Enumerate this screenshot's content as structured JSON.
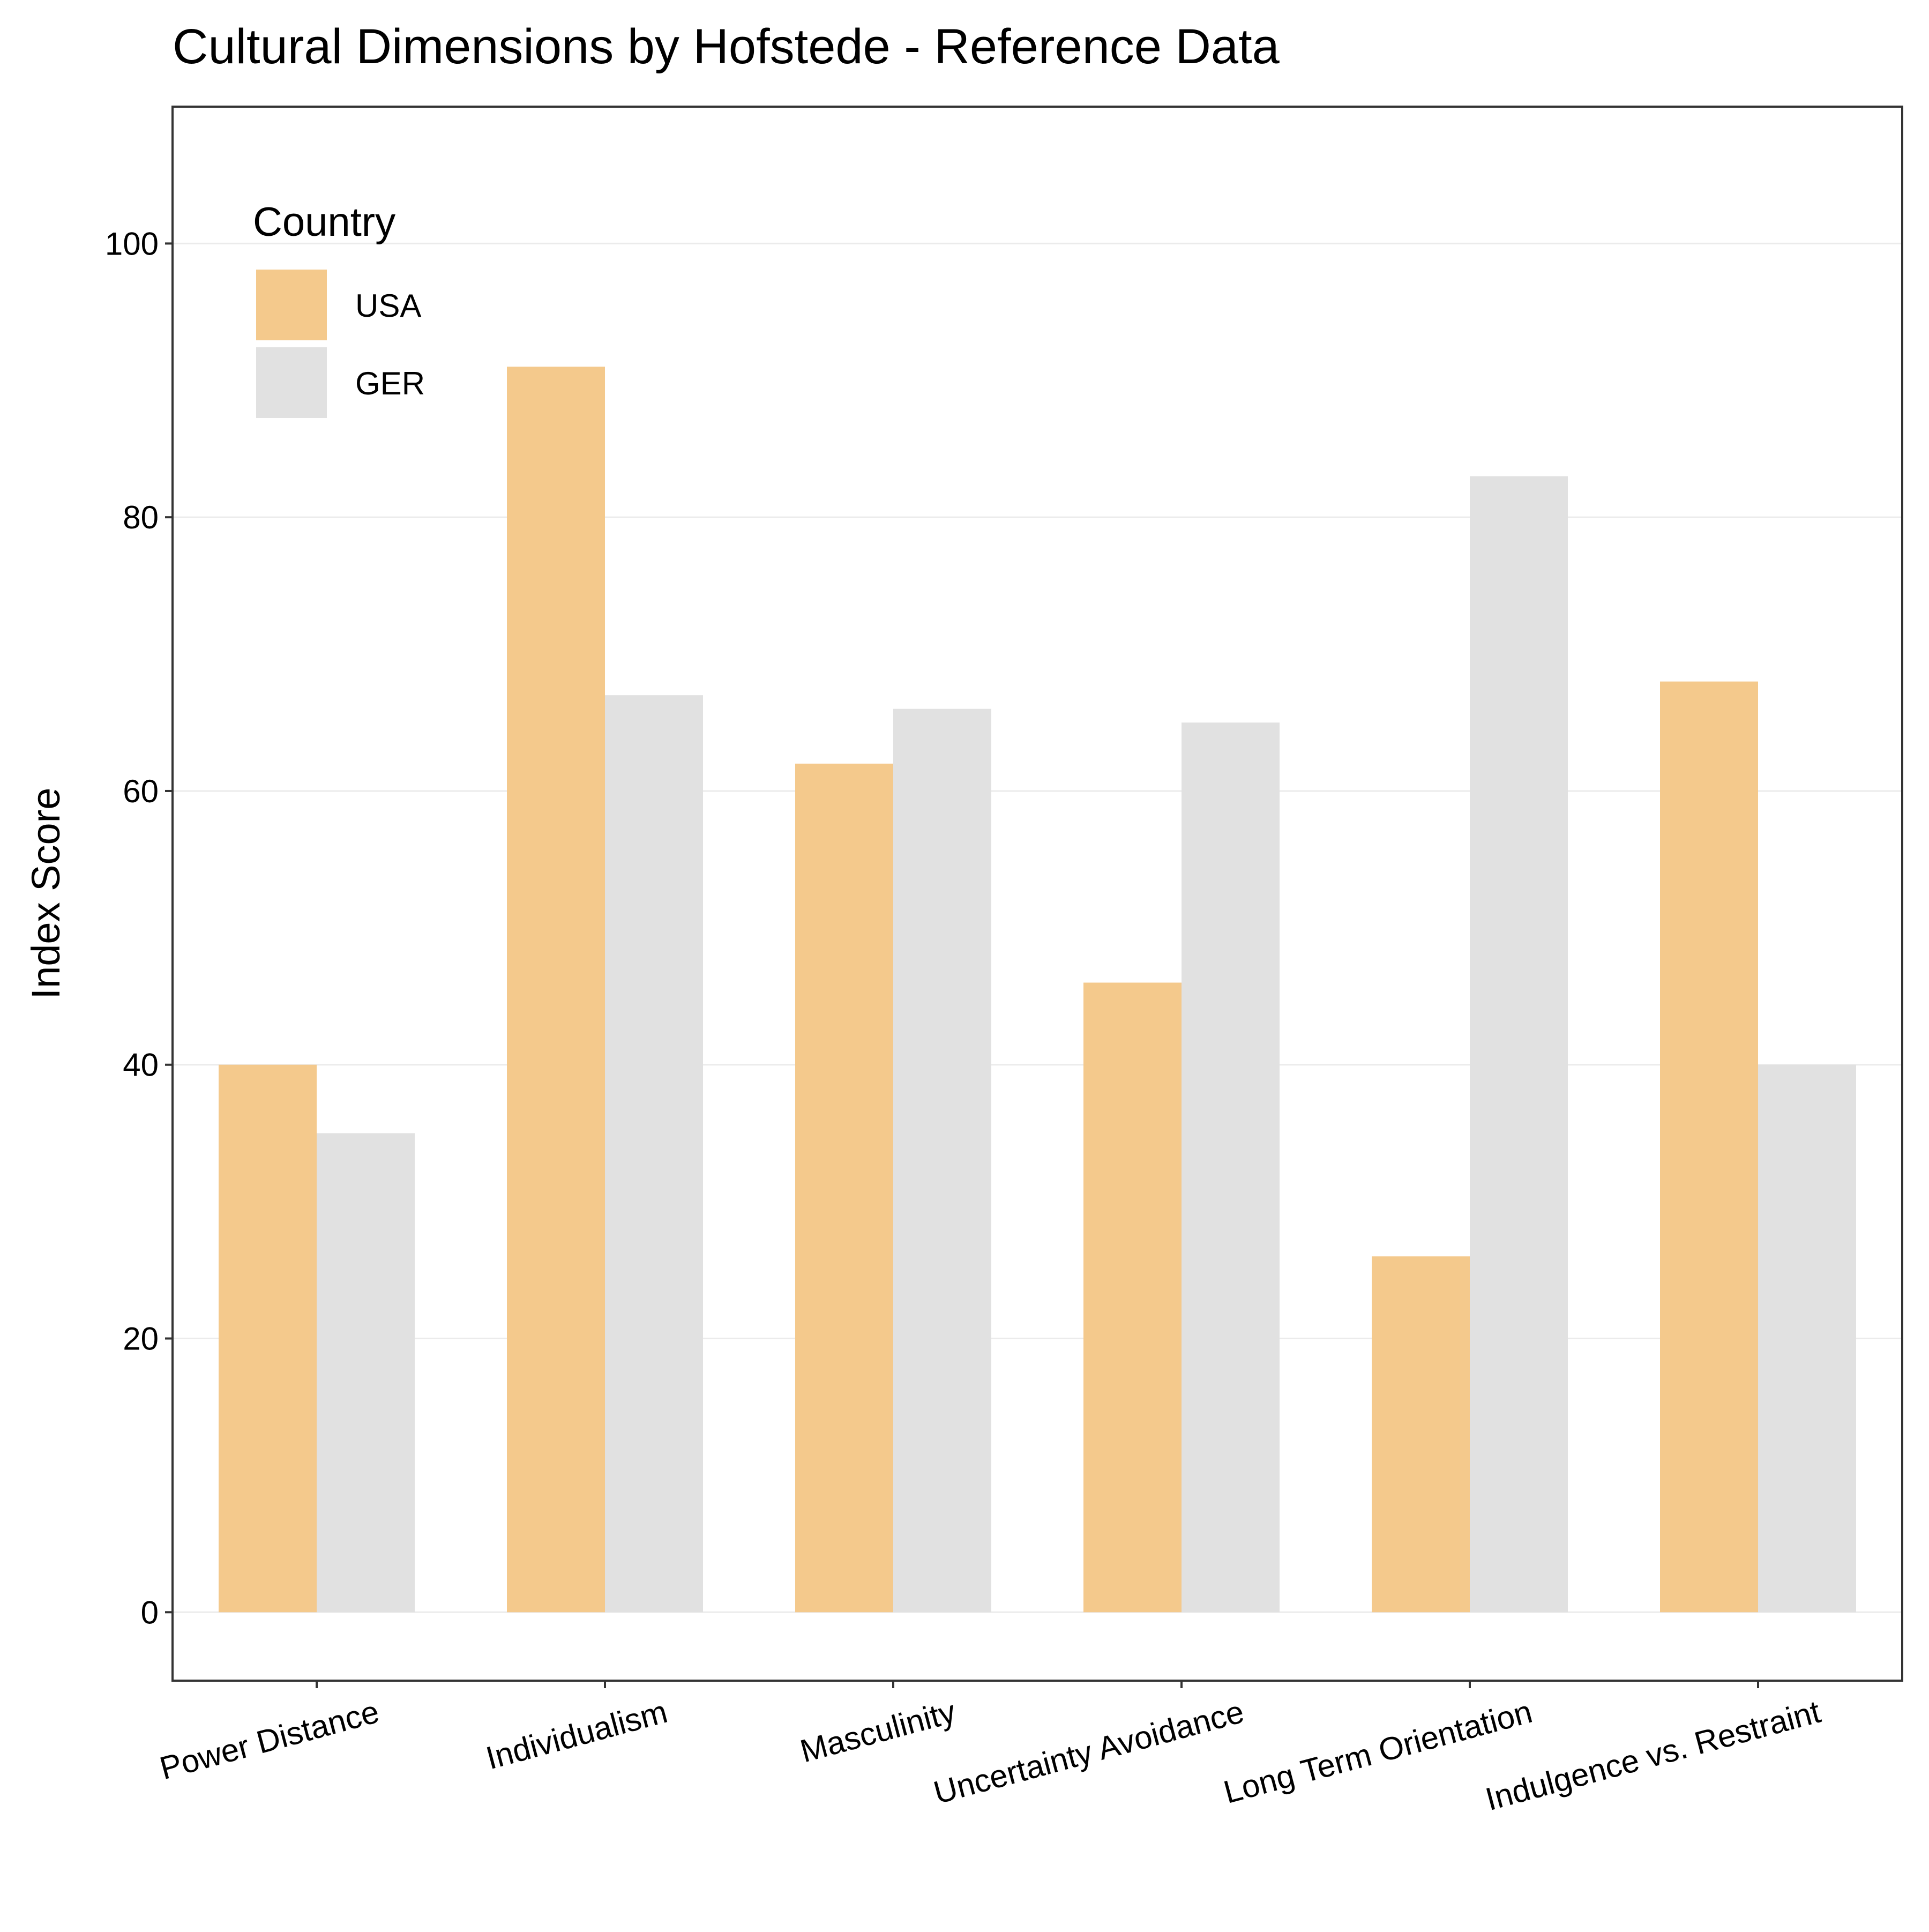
{
  "chart_data": {
    "type": "bar",
    "title": "Cultural Dimensions by Hofstede - Reference Data",
    "xlabel": "",
    "ylabel": "Index Score",
    "categories": [
      "Power Distance",
      "Individualism",
      "Masculinity",
      "Uncertainty Avoidance",
      "Long Term Orientation",
      "Indulgence vs. Restraint"
    ],
    "series": [
      {
        "name": "USA",
        "color": "#F4C98C",
        "values": [
          40,
          91,
          62,
          46,
          26,
          68
        ]
      },
      {
        "name": "GER",
        "color": "#E1E1E1",
        "values": [
          35,
          67,
          66,
          65,
          83,
          40
        ]
      }
    ],
    "ylim": [
      -5,
      110
    ],
    "yticks": [
      0,
      20,
      40,
      60,
      80,
      100
    ],
    "grid": true,
    "legend": {
      "title": "Country",
      "position": "top-left"
    }
  }
}
